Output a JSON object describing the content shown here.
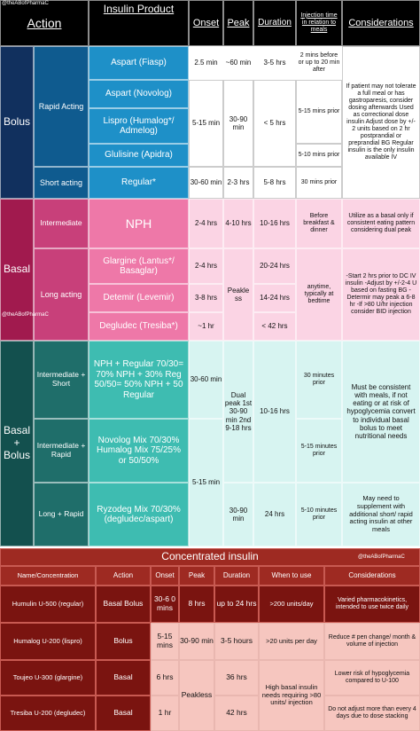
{
  "watermark": "@theABofPharmaC",
  "headers": {
    "action": "Action",
    "product": "Insulin Product",
    "onset": "Onset",
    "peak": "Peak",
    "duration": "Duration",
    "injection": "Injection time in relation to meals",
    "considerations": "Considerations"
  },
  "bolus": {
    "label": "Bolus",
    "rapid": {
      "label": "Rapid Acting",
      "products": [
        "Aspart (Fiasp)",
        "Aspart (Novolog)",
        "Lispro (Humalog*/ Admelog)",
        "Glulisine (Apidra)"
      ],
      "fiasp_onset": "2.5 min",
      "fiasp_peak": "~60 min",
      "fiasp_duration": "3-5 hrs",
      "fiasp_injection": "2 mins before or up to 20 min after",
      "onset": "5-15 min",
      "peak": "30-90 min",
      "duration": "< 5 hrs",
      "injection_1": "5-15 mins prior",
      "injection_2": "5-10 mins prior"
    },
    "short": {
      "label": "Short acting",
      "product": "Regular*",
      "onset": "30-60 min",
      "peak": "2-3 hrs",
      "duration": "5-8 hrs",
      "injection": "30 mins prior"
    },
    "considerations": "If patient may not tolerate a full meal or has gastroparesis, consider dosing afterwards Used as correctional dose insulin Adjust dose by +/- 2 units based on 2 hr postprandial or preprandial BG Regular insulin is the only insulin available IV"
  },
  "basal": {
    "label": "Basal",
    "intermediate": {
      "label": "Intermediate",
      "product": "NPH",
      "onset": "2-4 hrs",
      "peak": "4-10 hrs",
      "duration": "10-16 hrs",
      "injection": "Before breakfast & dinner",
      "considerations": "Utilize as a basal only if consistent eating pattern considering dual peak"
    },
    "long": {
      "label": "Long acting",
      "products": [
        "Glargine (Lantus*/ Basaglar)",
        "Detemir (Levemir)",
        "Degludec (Tresiba*)"
      ],
      "onsets": [
        "2-4 hrs",
        "3-8 hrs",
        "~1 hr"
      ],
      "durations": [
        "20-24 hrs",
        "14-24 hrs",
        "< 42 hrs"
      ],
      "peak": "Peakle ss",
      "injection": "anytime, typically at bedtime",
      "considerations": "-Start 2 hrs prior to DC IV insulin -Adjust by +/-2-4 U based on fasting BG -Determir may peak a 6-8 hr -If >80 U/hr injection consider BID injection"
    }
  },
  "basal_bolus": {
    "label": "Basal + Bolus",
    "rows": [
      {
        "label": "Intermediate + Short",
        "product": "NPH + Regular 70/30= 70% NPH + 30% Reg 50/50= 50% NPH + 50 Regular",
        "onset": "30-60 min",
        "injection": "30 minutes prior"
      },
      {
        "label": "Intermediate + Rapid",
        "product": "Novolog Mix 70/30% Humalog Mix 75/25% or 50/50%",
        "injection": "5-15 minutes prior"
      },
      {
        "label": "Long + Rapid",
        "product": "Ryzodeg Mix 70/30% (degludec/aspart)",
        "peak": "30-90 min",
        "duration": "24 hrs",
        "injection": "5-10 minutes prior"
      }
    ],
    "onset_rapid": "5-15 min",
    "peak_dual": "Dual peak 1st 30-90 min 2nd 9-18 hrs",
    "duration": "10-16 hrs",
    "considerations_1": "Must be consistent with meals, if not eating or at risk of hypoglycemia convert to individual basal bolus to meet nutritional needs",
    "considerations_2": "May need to supplement with additional short/ rapid acting insulin at other meals"
  },
  "concentrated": {
    "title": "Concentrated insulin",
    "headers": [
      "Name/Concentration",
      "Action",
      "Onset",
      "Peak",
      "Duration",
      "When to use",
      "Considerations"
    ],
    "rows": [
      {
        "name": "Humulin U-500 (regular)",
        "action": "Basal Bolus",
        "onset": "30-6 0 mins",
        "peak": "8 hrs",
        "duration": "up to 24 hrs",
        "when": ">200 units/day",
        "considerations": "Varied pharmacokinetics, intended to use twice daily"
      },
      {
        "name": "Humalog U-200 (lispro)",
        "action": "Bolus",
        "onset": "5-15 mins",
        "peak": "30-90 min",
        "duration": "3-5 hours",
        "when": ">20 units per day",
        "considerations": "Reduce # pen change/ month & volume of injection"
      },
      {
        "name": "Toujeo U-300 (glargine)",
        "action": "Basal",
        "onset": "6 hrs",
        "duration": "36 hrs",
        "considerations": "Lower risk of hypoglycemia compared to U-100"
      },
      {
        "name": "Tresiba U-200 (degludec)",
        "action": "Basal",
        "onset": "1 hr",
        "duration": "42 hrs",
        "considerations": "Do not adjust more than every 4 days due to dose stacking"
      }
    ],
    "peak_shared": "Peakless",
    "when_shared": "High basal insulin needs requiring >80 units/ injection"
  },
  "colors": {
    "bolus_dark": "#11305e",
    "bolus_mid": "#0f5b8f",
    "bolus_cell": "#1e90c8",
    "basal_dark": "#a11a4e",
    "basal_mid": "#c8407a",
    "basal_cell": "#ee78a8",
    "basal_light": "#fbd4e4",
    "bb_dark": "#13504e",
    "bb_mid": "#1f6e6a",
    "bb_cell": "#3ebcb1",
    "bb_light": "#d7f4f1",
    "conc_header": "#9e2a22",
    "conc_row": "#7a1410",
    "conc_pink": "#f6c6bf"
  }
}
